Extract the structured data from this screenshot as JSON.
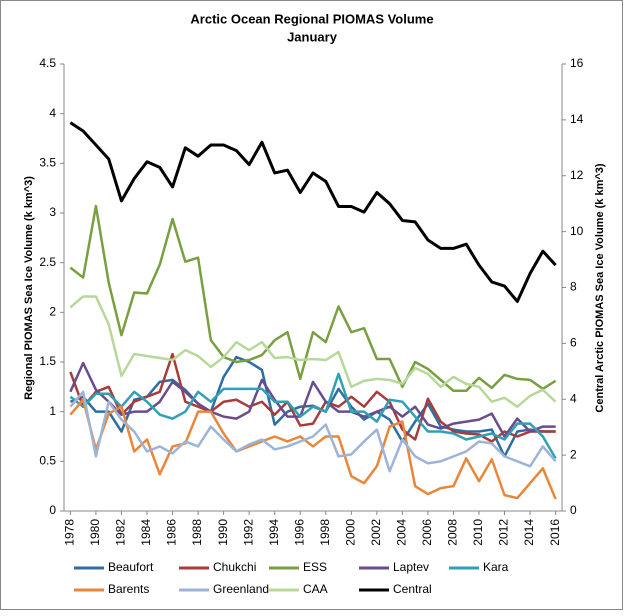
{
  "chart_data": {
    "type": "line",
    "title": "Arctic Ocean Regional PIOMAS Volume",
    "subtitle": "January",
    "y_label": "Regional PIOMAS Sea Ice Volume (k km^3)",
    "y2_label": "Central Arctic PIOMAS Sea Ice Volume (k km^3)",
    "x": [
      1978,
      1979,
      1980,
      1981,
      1982,
      1983,
      1984,
      1985,
      1986,
      1987,
      1988,
      1989,
      1990,
      1991,
      1992,
      1993,
      1994,
      1995,
      1996,
      1997,
      1998,
      1999,
      2000,
      2001,
      2002,
      2003,
      2004,
      2005,
      2006,
      2007,
      2008,
      2009,
      2010,
      2011,
      2012,
      2013,
      2014,
      2015,
      2016
    ],
    "xlim": [
      1977.5,
      2016.5
    ],
    "xticks": [
      1978,
      1980,
      1982,
      1984,
      1986,
      1988,
      1990,
      1992,
      1994,
      1996,
      1998,
      2000,
      2002,
      2004,
      2006,
      2008,
      2010,
      2012,
      2014,
      2016
    ],
    "ylim": [
      0,
      4.5
    ],
    "yticks": [
      0,
      0.5,
      1,
      1.5,
      2,
      2.5,
      3,
      3.5,
      4,
      4.5
    ],
    "y2lim": [
      0,
      16
    ],
    "y2ticks": [
      0,
      2,
      4,
      6,
      8,
      10,
      12,
      14,
      16
    ],
    "grid": false,
    "legend": "bottom",
    "series": [
      {
        "name": "Beaufort",
        "color": "#2e6da4",
        "values": [
          1.1,
          1.15,
          1.0,
          1.0,
          0.8,
          1.12,
          1.15,
          1.3,
          1.32,
          1.22,
          1.08,
          1.0,
          1.35,
          1.55,
          1.5,
          1.42,
          0.87,
          1.0,
          1.05,
          1.06,
          1.0,
          1.23,
          1.05,
          0.92,
          1.0,
          0.92,
          0.7,
          0.9,
          1.08,
          0.85,
          0.82,
          0.8,
          0.8,
          0.82,
          0.55,
          0.8,
          0.82,
          0.8,
          0.8
        ]
      },
      {
        "name": "Chukchi",
        "color": "#a83c3c",
        "values": [
          1.4,
          1.05,
          1.2,
          1.25,
          0.97,
          1.1,
          1.15,
          1.2,
          1.58,
          1.1,
          1.05,
          1.0,
          1.1,
          1.12,
          1.05,
          1.1,
          0.97,
          1.1,
          0.86,
          0.88,
          1.1,
          1.05,
          1.15,
          1.05,
          1.2,
          1.1,
          0.82,
          0.72,
          1.13,
          0.9,
          0.8,
          0.78,
          0.77,
          0.7,
          0.8,
          0.75,
          0.8,
          0.8,
          0.8
        ]
      },
      {
        "name": "ESS",
        "color": "#78a040",
        "values": [
          2.45,
          2.35,
          3.07,
          2.3,
          1.77,
          2.2,
          2.19,
          2.48,
          2.94,
          2.51,
          2.55,
          1.72,
          1.55,
          1.5,
          1.52,
          1.57,
          1.72,
          1.8,
          1.33,
          1.8,
          1.7,
          2.06,
          1.8,
          1.84,
          1.53,
          1.53,
          1.25,
          1.5,
          1.43,
          1.32,
          1.21,
          1.21,
          1.34,
          1.24,
          1.37,
          1.33,
          1.32,
          1.23,
          1.31
        ]
      },
      {
        "name": "Laptev",
        "color": "#6a4c8c",
        "values": [
          1.2,
          1.49,
          1.22,
          1.1,
          0.97,
          1.0,
          1.0,
          1.1,
          1.3,
          1.2,
          1.08,
          1.0,
          0.95,
          0.93,
          1.0,
          1.32,
          1.12,
          0.95,
          0.95,
          1.3,
          1.1,
          1.0,
          1.0,
          0.95,
          1.0,
          1.05,
          0.95,
          1.05,
          0.87,
          0.83,
          0.88,
          0.9,
          0.92,
          0.98,
          0.75,
          0.93,
          0.8,
          0.85,
          0.85
        ]
      },
      {
        "name": "Kara",
        "color": "#31a0b5",
        "values": [
          1.15,
          1.05,
          1.18,
          1.18,
          1.05,
          1.2,
          1.1,
          0.97,
          0.93,
          1.0,
          1.2,
          1.1,
          1.23,
          1.23,
          1.23,
          1.23,
          1.1,
          1.1,
          0.95,
          1.05,
          1.0,
          1.38,
          1.0,
          1.0,
          0.9,
          1.12,
          1.1,
          0.95,
          0.8,
          0.8,
          0.78,
          0.72,
          0.75,
          0.78,
          0.72,
          0.88,
          0.88,
          0.75,
          0.53
        ]
      },
      {
        "name": "Barents",
        "color": "#e8873a",
        "values": [
          0.97,
          1.12,
          0.62,
          0.98,
          1.05,
          0.6,
          0.72,
          0.37,
          0.65,
          0.68,
          1.0,
          1.0,
          0.78,
          0.6,
          0.65,
          0.7,
          0.75,
          0.7,
          0.75,
          0.65,
          0.75,
          0.75,
          0.35,
          0.28,
          0.45,
          0.85,
          0.9,
          0.25,
          0.17,
          0.23,
          0.25,
          0.53,
          0.3,
          0.52,
          0.16,
          0.13,
          0.28,
          0.43,
          0.12
        ]
      },
      {
        "name": "Greenland",
        "color": "#9db4d8",
        "values": [
          1.05,
          1.2,
          0.55,
          1.1,
          0.92,
          0.8,
          0.6,
          0.65,
          0.58,
          0.7,
          0.65,
          0.85,
          0.72,
          0.6,
          0.67,
          0.72,
          0.62,
          0.65,
          0.7,
          0.75,
          0.87,
          0.55,
          0.57,
          0.7,
          0.82,
          0.4,
          0.72,
          0.55,
          0.48,
          0.5,
          0.55,
          0.6,
          0.7,
          0.68,
          0.55,
          0.5,
          0.45,
          0.65,
          0.5
        ]
      },
      {
        "name": "CAA",
        "color": "#b8d89a",
        "values": [
          2.05,
          2.16,
          2.16,
          1.88,
          1.36,
          1.58,
          1.56,
          1.54,
          1.52,
          1.62,
          1.56,
          1.45,
          1.55,
          1.7,
          1.62,
          1.7,
          1.54,
          1.55,
          1.52,
          1.53,
          1.52,
          1.6,
          1.25,
          1.31,
          1.33,
          1.32,
          1.28,
          1.44,
          1.38,
          1.25,
          1.35,
          1.28,
          1.25,
          1.1,
          1.14,
          1.05,
          1.16,
          1.22,
          1.1
        ]
      },
      {
        "name": "Central",
        "color": "#000000",
        "axis": "y2",
        "values": [
          13.9,
          13.6,
          13.1,
          12.6,
          11.1,
          11.9,
          12.5,
          12.3,
          11.6,
          13.0,
          12.7,
          13.1,
          13.1,
          12.9,
          12.4,
          13.2,
          12.1,
          12.2,
          11.4,
          12.1,
          11.8,
          10.9,
          10.9,
          10.7,
          11.4,
          11.0,
          10.4,
          10.35,
          9.7,
          9.4,
          9.4,
          9.55,
          8.8,
          8.2,
          8.05,
          7.5,
          8.5,
          9.3,
          8.8
        ]
      }
    ]
  }
}
